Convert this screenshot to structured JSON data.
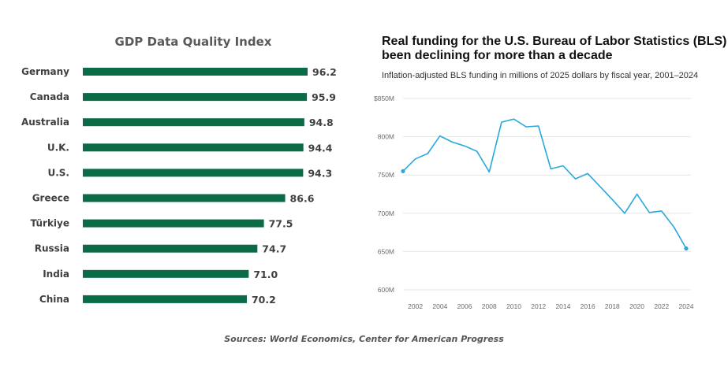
{
  "chart_data": [
    {
      "type": "bar",
      "orientation": "horizontal",
      "title": "GDP Data Quality Index",
      "categories": [
        "Germany",
        "Canada",
        "Australia",
        "U.K.",
        "U.S.",
        "Greece",
        "Türkiye",
        "Russia",
        "India",
        "China"
      ],
      "values": [
        96.2,
        95.9,
        94.8,
        94.4,
        94.3,
        86.6,
        77.5,
        74.7,
        71.0,
        70.2
      ],
      "value_labels": [
        "96.2",
        "95.9",
        "94.8",
        "94.4",
        "94.3",
        "86.6",
        "77.5",
        "74.7",
        "71.0",
        "70.2"
      ],
      "bar_color": "#0b6b47"
    },
    {
      "type": "line",
      "title": "Real funding for the U.S. Bureau of Labor Statistics (BLS) has been declining for more than a decade",
      "subtitle": "Inflation-adjusted BLS funding in millions of 2025 dollars by fiscal year, 2001–2024",
      "x": [
        2001,
        2002,
        2003,
        2004,
        2005,
        2006,
        2007,
        2008,
        2009,
        2010,
        2011,
        2012,
        2013,
        2014,
        2015,
        2016,
        2017,
        2018,
        2019,
        2020,
        2021,
        2022,
        2023,
        2024
      ],
      "series": [
        {
          "values": [
            755,
            771,
            778,
            801,
            793,
            788,
            781,
            754,
            819,
            823,
            813,
            814,
            758,
            762,
            745,
            752,
            735,
            718,
            700,
            725,
            701,
            703,
            682,
            654
          ]
        }
      ],
      "ylim": [
        600,
        850
      ],
      "yticks": [
        "600M",
        "650M",
        "700M",
        "750M",
        "800M",
        "$850M"
      ],
      "xticks": [
        "2002",
        "2004",
        "2006",
        "2008",
        "2010",
        "2012",
        "2014",
        "2016",
        "2018",
        "2020",
        "2022",
        "2024"
      ],
      "line_color": "#29a8dd",
      "grid": true
    }
  ],
  "source_note": "Sources: World Economics, Center for American Progress"
}
